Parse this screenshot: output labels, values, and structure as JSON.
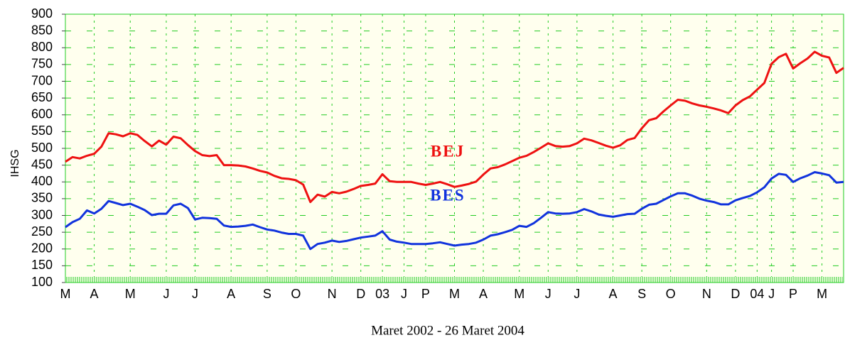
{
  "chart_data": {
    "type": "line",
    "y_label": "IHSG",
    "x_label": "Maret 2002 - 26 Maret 2004",
    "annotations": [
      {
        "text": "BEJ",
        "color": "#ee1111"
      },
      {
        "text": "BES",
        "color": "#1133dd"
      }
    ],
    "categories": [
      "M",
      null,
      null,
      null,
      "A",
      null,
      null,
      null,
      null,
      "M",
      null,
      null,
      null,
      null,
      "J",
      null,
      null,
      null,
      "J",
      null,
      null,
      null,
      null,
      "A",
      null,
      null,
      null,
      null,
      "S",
      null,
      null,
      null,
      "O",
      null,
      null,
      null,
      null,
      "N",
      null,
      null,
      null,
      "D",
      null,
      null,
      "03",
      null,
      null,
      "J",
      null,
      null,
      "P",
      null,
      null,
      null,
      "M",
      null,
      null,
      null,
      "A",
      null,
      null,
      null,
      null,
      "M",
      null,
      null,
      null,
      "J",
      null,
      null,
      null,
      "J",
      null,
      null,
      null,
      null,
      "A",
      null,
      null,
      null,
      "S",
      null,
      null,
      null,
      "O",
      null,
      null,
      null,
      null,
      "N",
      null,
      null,
      null,
      "D",
      null,
      null,
      "04",
      null,
      "J",
      null,
      null,
      "P",
      null,
      null,
      null,
      "M",
      null,
      null,
      null
    ],
    "series": [
      {
        "name": "BEJ",
        "color": "#ee1111",
        "values": [
          460,
          474,
          470,
          478,
          484,
          505,
          545,
          542,
          536,
          545,
          540,
          522,
          506,
          523,
          511,
          535,
          530,
          510,
          492,
          480,
          477,
          480,
          450,
          450,
          449,
          446,
          440,
          433,
          428,
          418,
          411,
          409,
          405,
          392,
          340,
          362,
          356,
          370,
          366,
          371,
          379,
          388,
          391,
          395,
          423,
          402,
          400,
          400,
          400,
          395,
          391,
          395,
          400,
          393,
          385,
          389,
          394,
          401,
          422,
          440,
          444,
          452,
          462,
          472,
          478,
          489,
          502,
          515,
          507,
          505,
          507,
          515,
          529,
          524,
          516,
          508,
          502,
          509,
          525,
          531,
          560,
          584,
          590,
          610,
          628,
          645,
          642,
          634,
          628,
          624,
          619,
          613,
          605,
          628,
          644,
          655,
          675,
          695,
          752,
          772,
          782,
          738,
          754,
          768,
          788,
          776,
          771,
          725,
          740
        ]
      },
      {
        "name": "BES",
        "color": "#1133dd",
        "values": [
          265,
          280,
          290,
          315,
          306,
          320,
          343,
          337,
          331,
          335,
          326,
          316,
          301,
          305,
          305,
          330,
          335,
          322,
          288,
          293,
          292,
          290,
          270,
          266,
          267,
          269,
          273,
          265,
          258,
          255,
          249,
          245,
          245,
          240,
          200,
          215,
          219,
          225,
          221,
          224,
          229,
          234,
          237,
          240,
          253,
          228,
          222,
          219,
          215,
          215,
          215,
          217,
          220,
          215,
          210,
          213,
          215,
          219,
          228,
          240,
          244,
          250,
          257,
          269,
          266,
          277,
          293,
          310,
          306,
          305,
          306,
          310,
          319,
          312,
          303,
          299,
          296,
          300,
          304,
          305,
          320,
          332,
          335,
          346,
          357,
          366,
          366,
          359,
          350,
          344,
          340,
          333,
          333,
          345,
          352,
          358,
          369,
          384,
          410,
          424,
          421,
          400,
          411,
          419,
          429,
          425,
          420,
          398,
          400
        ]
      }
    ],
    "ylim": [
      100,
      900
    ],
    "yticks": [
      100,
      150,
      200,
      250,
      300,
      350,
      400,
      450,
      500,
      550,
      600,
      650,
      700,
      750,
      800,
      850,
      900
    ],
    "grid": true,
    "background": "#ffffee",
    "grid_color": "#22cc22"
  }
}
